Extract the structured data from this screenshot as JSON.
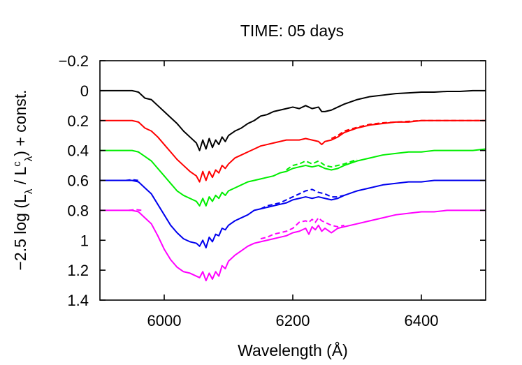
{
  "chart_data": {
    "type": "line",
    "title": "TIME: 05 days",
    "xlabel": "Wavelength (Å)",
    "ylabel": {
      "pre": "−2.5 log (L",
      "sub1": "λ",
      "mid": " / L",
      "sup": "c",
      "sub2": "λ",
      "post": ") + const."
    },
    "xlim": [
      5900,
      6500
    ],
    "ylim": [
      1.4,
      -0.2
    ],
    "y_inverted": true,
    "grid": false,
    "legend": "none",
    "xticks": [
      6000,
      6200,
      6400
    ],
    "yticks": [
      -0.2,
      0,
      0.2,
      0.4,
      0.6,
      0.8,
      1,
      1.2,
      1.4
    ],
    "ytick_labels": [
      "−0.2",
      "0",
      "0.2",
      "0.4",
      "0.6",
      "0.8",
      "1",
      "1.2",
      "1.4"
    ],
    "series": [
      {
        "color": "#000000",
        "style": "solid",
        "x": [
          5900,
          5950,
          5960,
          5970,
          5980,
          5990,
          6000,
          6010,
          6020,
          6030,
          6040,
          6050,
          6055,
          6060,
          6065,
          6070,
          6075,
          6080,
          6085,
          6090,
          6095,
          6100,
          6110,
          6120,
          6130,
          6140,
          6150,
          6160,
          6170,
          6180,
          6190,
          6200,
          6210,
          6220,
          6230,
          6240,
          6245,
          6250,
          6260,
          6270,
          6280,
          6300,
          6320,
          6340,
          6360,
          6380,
          6400,
          6420,
          6440,
          6460,
          6480,
          6500
        ],
        "y": [
          0,
          0,
          0.01,
          0.05,
          0.06,
          0.1,
          0.14,
          0.18,
          0.22,
          0.27,
          0.31,
          0.35,
          0.4,
          0.33,
          0.39,
          0.32,
          0.38,
          0.33,
          0.36,
          0.31,
          0.34,
          0.3,
          0.27,
          0.25,
          0.22,
          0.2,
          0.17,
          0.16,
          0.14,
          0.13,
          0.12,
          0.11,
          0.12,
          0.1,
          0.12,
          0.11,
          0.14,
          0.14,
          0.13,
          0.11,
          0.09,
          0.06,
          0.04,
          0.03,
          0.02,
          0.015,
          0.01,
          0.01,
          0.005,
          0.005,
          0,
          0
        ]
      },
      {
        "color": "#ff0000",
        "style": "solid",
        "x": [
          5900,
          5950,
          5960,
          5970,
          5980,
          5990,
          6000,
          6010,
          6020,
          6030,
          6040,
          6050,
          6055,
          6060,
          6065,
          6070,
          6075,
          6080,
          6085,
          6090,
          6095,
          6100,
          6110,
          6120,
          6130,
          6140,
          6150,
          6160,
          6170,
          6180,
          6190,
          6200,
          6210,
          6220,
          6230,
          6240,
          6245,
          6250,
          6260,
          6270,
          6280,
          6300,
          6320,
          6340,
          6360,
          6380,
          6400,
          6420,
          6440,
          6460,
          6480,
          6500
        ],
        "y": [
          0.2,
          0.2,
          0.21,
          0.25,
          0.27,
          0.31,
          0.36,
          0.41,
          0.46,
          0.5,
          0.54,
          0.57,
          0.61,
          0.54,
          0.6,
          0.54,
          0.58,
          0.53,
          0.55,
          0.5,
          0.52,
          0.49,
          0.45,
          0.43,
          0.41,
          0.39,
          0.37,
          0.36,
          0.35,
          0.34,
          0.33,
          0.33,
          0.33,
          0.32,
          0.33,
          0.34,
          0.36,
          0.34,
          0.33,
          0.31,
          0.28,
          0.25,
          0.23,
          0.22,
          0.21,
          0.21,
          0.2,
          0.2,
          0.2,
          0.2,
          0.2,
          0.2
        ]
      },
      {
        "color": "#ff0000",
        "style": "dashed",
        "x": [
          6260,
          6270,
          6280,
          6300,
          6320,
          6340,
          6360,
          6380,
          6400,
          6420,
          6440,
          6460,
          6480,
          6500
        ],
        "y": [
          0.32,
          0.3,
          0.27,
          0.245,
          0.225,
          0.215,
          0.21,
          0.205,
          0.2,
          0.2,
          0.2,
          0.2,
          0.2,
          0.2
        ]
      },
      {
        "color": "#00ee00",
        "style": "solid",
        "x": [
          5900,
          5950,
          5960,
          5970,
          5980,
          5990,
          6000,
          6010,
          6020,
          6030,
          6040,
          6050,
          6055,
          6060,
          6065,
          6070,
          6075,
          6080,
          6085,
          6090,
          6095,
          6100,
          6110,
          6120,
          6130,
          6140,
          6150,
          6160,
          6170,
          6180,
          6190,
          6200,
          6210,
          6220,
          6230,
          6240,
          6250,
          6260,
          6270,
          6280,
          6300,
          6320,
          6340,
          6360,
          6380,
          6400,
          6420,
          6440,
          6460,
          6480,
          6500
        ],
        "y": [
          0.4,
          0.4,
          0.41,
          0.44,
          0.47,
          0.52,
          0.57,
          0.62,
          0.67,
          0.7,
          0.72,
          0.74,
          0.77,
          0.72,
          0.77,
          0.71,
          0.74,
          0.7,
          0.72,
          0.68,
          0.7,
          0.67,
          0.65,
          0.63,
          0.61,
          0.6,
          0.59,
          0.58,
          0.57,
          0.55,
          0.54,
          0.52,
          0.51,
          0.5,
          0.51,
          0.5,
          0.52,
          0.53,
          0.52,
          0.5,
          0.47,
          0.45,
          0.43,
          0.42,
          0.41,
          0.41,
          0.4,
          0.4,
          0.4,
          0.4,
          0.39
        ]
      },
      {
        "color": "#00ee00",
        "style": "dashed",
        "x": [
          6190,
          6200,
          6210,
          6220,
          6230,
          6240,
          6250,
          6260,
          6270,
          6280,
          6300
        ],
        "y": [
          0.53,
          0.5,
          0.49,
          0.47,
          0.49,
          0.47,
          0.5,
          0.51,
          0.5,
          0.49,
          0.46
        ]
      },
      {
        "color": "#0000ee",
        "style": "solid",
        "x": [
          5900,
          5950,
          5960,
          5970,
          5980,
          5990,
          6000,
          6010,
          6020,
          6030,
          6040,
          6050,
          6055,
          6060,
          6065,
          6070,
          6075,
          6080,
          6085,
          6090,
          6095,
          6100,
          6110,
          6120,
          6130,
          6140,
          6150,
          6160,
          6170,
          6180,
          6190,
          6200,
          6210,
          6220,
          6230,
          6240,
          6250,
          6260,
          6270,
          6280,
          6300,
          6320,
          6340,
          6360,
          6380,
          6400,
          6420,
          6440,
          6460,
          6480,
          6500
        ],
        "y": [
          0.6,
          0.6,
          0.61,
          0.65,
          0.69,
          0.76,
          0.83,
          0.9,
          0.95,
          0.99,
          1.01,
          1.02,
          1.04,
          1.0,
          1.05,
          0.98,
          1.01,
          0.96,
          0.97,
          0.92,
          0.93,
          0.9,
          0.87,
          0.85,
          0.83,
          0.8,
          0.79,
          0.78,
          0.77,
          0.76,
          0.75,
          0.73,
          0.72,
          0.71,
          0.72,
          0.71,
          0.72,
          0.73,
          0.72,
          0.7,
          0.67,
          0.65,
          0.63,
          0.62,
          0.61,
          0.61,
          0.6,
          0.6,
          0.6,
          0.6,
          0.6
        ]
      },
      {
        "color": "#0000ee",
        "style": "dashed",
        "x": [
          6150,
          6160,
          6170,
          6180,
          6190,
          6200,
          6210,
          6220,
          6230,
          6240,
          6250,
          6260,
          6270,
          6280
        ],
        "y": [
          0.79,
          0.77,
          0.76,
          0.75,
          0.73,
          0.71,
          0.69,
          0.67,
          0.66,
          0.68,
          0.69,
          0.71,
          0.71,
          0.7
        ]
      },
      {
        "color": "#0000ee",
        "style": "dashed",
        "x": [
          5940,
          5950,
          5960
        ],
        "y": [
          0.6,
          0.595,
          0.6
        ]
      },
      {
        "color": "#ff00ff",
        "style": "solid",
        "x": [
          5900,
          5950,
          5960,
          5970,
          5980,
          5990,
          6000,
          6010,
          6020,
          6030,
          6040,
          6050,
          6055,
          6060,
          6065,
          6070,
          6075,
          6080,
          6085,
          6090,
          6095,
          6100,
          6110,
          6120,
          6130,
          6140,
          6150,
          6160,
          6170,
          6180,
          6190,
          6200,
          6210,
          6220,
          6225,
          6230,
          6235,
          6240,
          6245,
          6250,
          6260,
          6270,
          6280,
          6300,
          6320,
          6340,
          6360,
          6380,
          6400,
          6420,
          6440,
          6460,
          6480,
          6500
        ],
        "y": [
          0.8,
          0.8,
          0.81,
          0.85,
          0.89,
          0.97,
          1.06,
          1.13,
          1.18,
          1.21,
          1.22,
          1.24,
          1.25,
          1.21,
          1.27,
          1.22,
          1.26,
          1.21,
          1.24,
          1.17,
          1.19,
          1.14,
          1.1,
          1.07,
          1.04,
          1.02,
          1.01,
          1.0,
          0.99,
          0.98,
          0.97,
          0.95,
          0.94,
          0.92,
          0.96,
          0.91,
          0.93,
          0.9,
          0.94,
          0.92,
          0.95,
          0.92,
          0.91,
          0.89,
          0.87,
          0.85,
          0.83,
          0.82,
          0.81,
          0.81,
          0.8,
          0.8,
          0.8,
          0.8
        ]
      },
      {
        "color": "#ff00ff",
        "style": "dashed",
        "x": [
          5945,
          5955,
          5965
        ],
        "y": [
          0.8,
          0.795,
          0.8
        ]
      },
      {
        "color": "#ff00ff",
        "style": "dashed",
        "x": [
          6150,
          6160,
          6170,
          6180,
          6190,
          6200,
          6210,
          6220,
          6225,
          6230,
          6235,
          6240,
          6245,
          6250,
          6260,
          6270,
          6280
        ],
        "y": [
          0.99,
          0.98,
          0.96,
          0.95,
          0.94,
          0.92,
          0.88,
          0.87,
          0.88,
          0.86,
          0.88,
          0.85,
          0.87,
          0.88,
          0.9,
          0.91,
          0.9
        ]
      }
    ]
  }
}
